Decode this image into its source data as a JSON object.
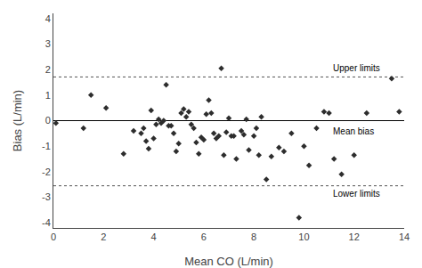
{
  "chart_data": {
    "type": "scatter",
    "x": [
      0.1,
      1.2,
      1.5,
      2.1,
      2.8,
      3.2,
      3.5,
      3.6,
      3.7,
      3.8,
      3.9,
      4.0,
      4.1,
      4.2,
      4.3,
      4.4,
      4.5,
      4.6,
      4.7,
      4.8,
      4.9,
      5.0,
      5.1,
      5.2,
      5.3,
      5.4,
      5.5,
      5.6,
      5.7,
      5.8,
      5.9,
      6.0,
      6.1,
      6.2,
      6.3,
      6.4,
      6.5,
      6.6,
      6.7,
      6.8,
      6.9,
      7.0,
      7.1,
      7.2,
      7.3,
      7.5,
      7.6,
      7.7,
      7.8,
      8.0,
      8.1,
      8.2,
      8.3,
      8.5,
      8.7,
      9.0,
      9.2,
      9.5,
      9.8,
      10.0,
      10.2,
      10.5,
      10.8,
      11.0,
      11.2,
      11.5,
      12.0,
      12.5,
      13.5,
      13.8
    ],
    "values": [
      -0.1,
      -0.3,
      1.0,
      0.5,
      -1.3,
      -0.4,
      -0.5,
      -0.3,
      -0.8,
      -1.1,
      0.4,
      -0.7,
      -0.15,
      0.05,
      -0.1,
      0.0,
      1.4,
      -0.2,
      -0.2,
      -0.5,
      -1.2,
      -0.9,
      0.3,
      0.45,
      0.15,
      0.35,
      -0.15,
      -0.3,
      -0.85,
      -1.3,
      -0.65,
      -0.75,
      0.25,
      0.8,
      0.3,
      -0.5,
      -0.7,
      -0.6,
      2.05,
      -1.35,
      -0.45,
      0.1,
      -0.6,
      -0.6,
      -1.5,
      -0.4,
      -0.55,
      0.05,
      -1.15,
      -0.6,
      -0.3,
      -1.35,
      0.15,
      -2.3,
      -1.4,
      -1.05,
      -1.2,
      -0.5,
      -3.8,
      -1.0,
      -1.75,
      -0.3,
      0.35,
      0.3,
      -1.5,
      -2.1,
      -1.35,
      0.3,
      1.65,
      0.35
    ],
    "color": "#2d2d2d",
    "marker": "diamond",
    "xlabel": "Mean CO (L/min)",
    "ylabel": "Bias (L/min)",
    "xlim": [
      0,
      14
    ],
    "ylim": [
      -4.2,
      4.2
    ],
    "xticks": [
      0,
      2,
      4,
      6,
      8,
      10,
      12,
      14
    ],
    "yticks": [
      -4,
      -3,
      -2,
      -1,
      0,
      1,
      2,
      3,
      4
    ],
    "grid": false,
    "reference_lines": [
      {
        "y": 0.0,
        "color": "#000000",
        "line_style": "solid"
      },
      {
        "y": 1.71,
        "color": "#555555",
        "line_style": "dotted"
      },
      {
        "y": -2.55,
        "color": "#555555",
        "line_style": "dotted"
      }
    ],
    "annotations": [
      {
        "text": "Upper limits",
        "x": 11.1,
        "y": 2.05
      },
      {
        "text": "Lower limits",
        "x": 11.1,
        "y": -2.85
      },
      {
        "text": "Mean bias",
        "x": 11.1,
        "y": -0.42
      }
    ]
  }
}
